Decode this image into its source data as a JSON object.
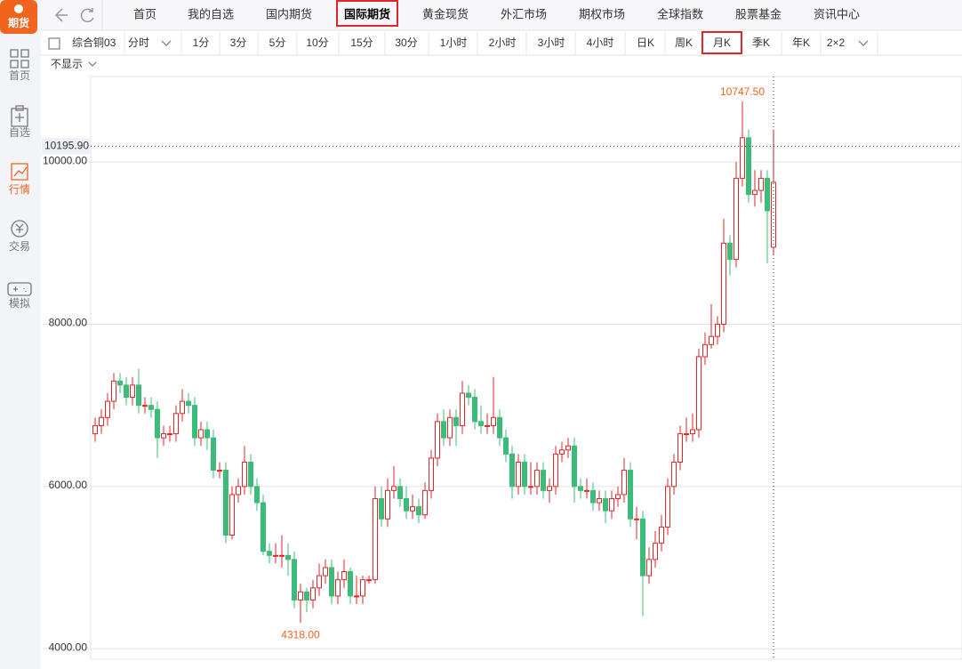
{
  "sidebar": {
    "logo": "期货",
    "items": [
      "首页",
      "自选",
      "行情",
      "交易",
      "模拟"
    ],
    "active": 2
  },
  "nav": {
    "tabs": [
      "首页",
      "我的自选",
      "国内期货",
      "国际期货",
      "黄金现货",
      "外汇市场",
      "期权市场",
      "全球指数",
      "股票基金",
      "资讯中心"
    ],
    "active": 3
  },
  "toolbar": {
    "instrument": "综合铜03",
    "periods": [
      "分时",
      "1分",
      "3分",
      "5分",
      "10分",
      "15分",
      "30分",
      "1小时",
      "2小时",
      "3小时",
      "4小时",
      "日K",
      "周K",
      "月K",
      "季K",
      "年K",
      "2×2"
    ],
    "active": 13
  },
  "indicator": "不显示",
  "chart_data": {
    "type": "candlestick",
    "up_color": "#e0262a",
    "down_color": "#3dbb7a",
    "ylim": [
      3870,
      11055
    ],
    "yticks": [
      {
        "value": 4000,
        "label": "4000.00"
      },
      {
        "value": 6000,
        "label": "6000.00"
      },
      {
        "value": 8000,
        "label": "8000.00"
      },
      {
        "value": 10000,
        "label": "10000.00"
      }
    ],
    "grid": true,
    "max_label": {
      "value": 10747.5,
      "label": "10747.50",
      "index": 104
    },
    "min_label": {
      "value": 4318,
      "label": "4318.00",
      "index": 33
    },
    "crosshair": {
      "value": 10195.9,
      "label": "10195.90",
      "index": 109
    },
    "ohlc": [
      [
        6650,
        6850,
        6550,
        6750
      ],
      [
        6750,
        6950,
        6650,
        6850
      ],
      [
        6850,
        7150,
        6750,
        7050
      ],
      [
        7050,
        7400,
        6950,
        7300
      ],
      [
        7300,
        7400,
        7150,
        7250
      ],
      [
        7250,
        7350,
        7000,
        7100
      ],
      [
        7100,
        7350,
        7000,
        7250
      ],
      [
        7250,
        7450,
        6900,
        7000
      ],
      [
        7000,
        7100,
        6900,
        7000
      ],
      [
        7000,
        7100,
        6850,
        6950
      ],
      [
        6950,
        7050,
        6350,
        6600
      ],
      [
        6600,
        6750,
        6500,
        6650
      ],
      [
        6650,
        6750,
        6550,
        6650
      ],
      [
        6650,
        7000,
        6550,
        6900
      ],
      [
        6900,
        7200,
        6800,
        7050
      ],
      [
        7050,
        7150,
        6900,
        7000
      ],
      [
        7000,
        7100,
        6500,
        6600
      ],
      [
        6600,
        6800,
        6500,
        6700
      ],
      [
        6700,
        6800,
        6450,
        6600
      ],
      [
        6600,
        6700,
        6100,
        6200
      ],
      [
        6200,
        6300,
        6100,
        6200
      ],
      [
        6200,
        6300,
        5300,
        5400
      ],
      [
        5400,
        6000,
        5350,
        5900
      ],
      [
        5900,
        6100,
        5800,
        6000
      ],
      [
        6000,
        6500,
        5900,
        6300
      ],
      [
        6300,
        6400,
        5900,
        6000
      ],
      [
        6000,
        6100,
        5700,
        5800
      ],
      [
        5800,
        5900,
        5150,
        5200
      ],
      [
        5200,
        5300,
        5050,
        5150
      ],
      [
        5150,
        5300,
        5050,
        5150
      ],
      [
        5150,
        5400,
        5000,
        5150
      ],
      [
        5150,
        5300,
        4900,
        5100
      ],
      [
        5100,
        5200,
        4500,
        4600
      ],
      [
        4600,
        4800,
        4318,
        4700
      ],
      [
        4700,
        4750,
        4450,
        4600
      ],
      [
        4600,
        4850,
        4500,
        4750
      ],
      [
        4750,
        5050,
        4650,
        4900
      ],
      [
        4900,
        5100,
        4800,
        5000
      ],
      [
        5000,
        5100,
        4550,
        4650
      ],
      [
        4650,
        4950,
        4550,
        4850
      ],
      [
        4850,
        5100,
        4750,
        4950
      ],
      [
        4950,
        5000,
        4550,
        4650
      ],
      [
        4650,
        4900,
        4550,
        4650
      ],
      [
        4650,
        4900,
        4550,
        4850
      ],
      [
        4850,
        4900,
        4800,
        4850
      ],
      [
        4850,
        6000,
        4800,
        5850
      ],
      [
        5850,
        6000,
        5500,
        5600
      ],
      [
        5600,
        6100,
        5500,
        5950
      ],
      [
        5950,
        6250,
        5850,
        6000
      ],
      [
        6000,
        6100,
        5750,
        5850
      ],
      [
        5850,
        6000,
        5600,
        5700
      ],
      [
        5700,
        5900,
        5600,
        5750
      ],
      [
        5750,
        5850,
        5550,
        5650
      ],
      [
        5650,
        6050,
        5600,
        5950
      ],
      [
        5950,
        6450,
        5850,
        6350
      ],
      [
        6350,
        6900,
        6250,
        6800
      ],
      [
        6800,
        6950,
        6500,
        6600
      ],
      [
        6600,
        6950,
        6500,
        6850
      ],
      [
        6850,
        6950,
        6500,
        6750
      ],
      [
        6750,
        7300,
        6650,
        7150
      ],
      [
        7150,
        7250,
        7000,
        7100
      ],
      [
        7100,
        7200,
        6700,
        6800
      ],
      [
        6800,
        7000,
        6650,
        6750
      ],
      [
        6750,
        6900,
        6650,
        6750
      ],
      [
        6750,
        7350,
        6650,
        6850
      ],
      [
        6850,
        6950,
        6500,
        6600
      ],
      [
        6600,
        6700,
        6300,
        6400
      ],
      [
        6400,
        6500,
        5850,
        6000
      ],
      [
        6000,
        6400,
        5900,
        6300
      ],
      [
        6300,
        6400,
        5900,
        6000
      ],
      [
        6000,
        6300,
        5900,
        6000
      ],
      [
        6000,
        6300,
        5900,
        6200
      ],
      [
        6200,
        6300,
        5850,
        5950
      ],
      [
        5950,
        6100,
        5800,
        6000
      ],
      [
        6000,
        6500,
        5900,
        6400
      ],
      [
        6400,
        6550,
        6300,
        6450
      ],
      [
        6450,
        6600,
        6350,
        6500
      ],
      [
        6500,
        6600,
        5800,
        6000
      ],
      [
        6000,
        6100,
        5850,
        5950
      ],
      [
        5950,
        6100,
        5850,
        5950
      ],
      [
        5950,
        6050,
        5700,
        5800
      ],
      [
        5800,
        5950,
        5700,
        5850
      ],
      [
        5850,
        5950,
        5550,
        5700
      ],
      [
        5700,
        5950,
        5600,
        5850
      ],
      [
        5850,
        6000,
        5750,
        5900
      ],
      [
        5900,
        6350,
        5800,
        6200
      ],
      [
        6200,
        6300,
        5500,
        5600
      ],
      [
        5600,
        5750,
        5350,
        5600
      ],
      [
        5600,
        5700,
        4400,
        4900
      ],
      [
        4900,
        5250,
        4800,
        5100
      ],
      [
        5100,
        5450,
        5000,
        5300
      ],
      [
        5300,
        5650,
        5200,
        5500
      ],
      [
        5500,
        6100,
        5400,
        6000
      ],
      [
        6000,
        6400,
        5900,
        6300
      ],
      [
        6300,
        6750,
        6200,
        6650
      ],
      [
        6650,
        6850,
        6550,
        6650
      ],
      [
        6650,
        6900,
        6550,
        6700
      ],
      [
        6700,
        7700,
        6600,
        7600
      ],
      [
        7600,
        7900,
        7500,
        7750
      ],
      [
        7750,
        8250,
        7700,
        7850
      ],
      [
        7850,
        8100,
        7750,
        8000
      ],
      [
        8000,
        9300,
        7900,
        9000
      ],
      [
        9000,
        9100,
        8600,
        8800
      ],
      [
        8800,
        10000,
        8700,
        9800
      ],
      [
        9800,
        10747.5,
        9700,
        10300
      ],
      [
        10300,
        10400,
        9500,
        9600
      ],
      [
        9600,
        9900,
        9450,
        9650
      ],
      [
        9650,
        9900,
        9500,
        9800
      ],
      [
        9800,
        9900,
        8750,
        9400
      ],
      [
        8950,
        10400,
        8850,
        9750
      ]
    ]
  }
}
